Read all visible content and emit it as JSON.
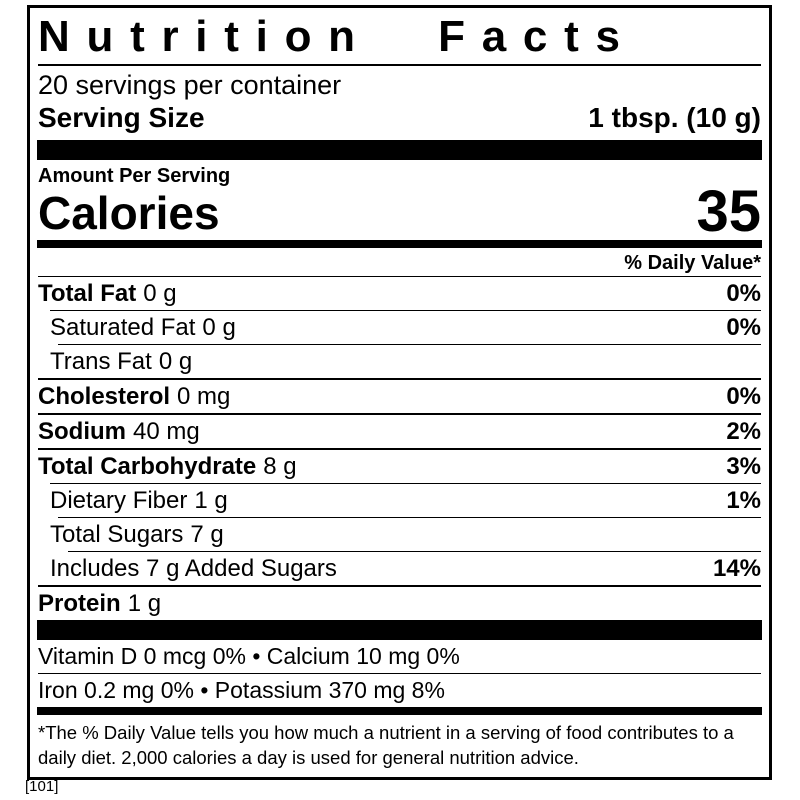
{
  "label": {
    "title": "Nutrition Facts",
    "servings_per_container": "20 servings per container",
    "serving_size": {
      "label": "Serving Size",
      "value": "1 tbsp. (10 g)"
    },
    "amount_per_serving": "Amount Per Serving",
    "calories": {
      "label": "Calories",
      "value": "35"
    },
    "daily_value_header": "% Daily Value*",
    "rows": [
      {
        "name": "Total Fat",
        "amount": "0 g",
        "dv": "0%"
      },
      {
        "name": "Saturated Fat",
        "amount": "0 g",
        "dv": "0%"
      },
      {
        "name": "Trans Fat",
        "amount": "0 g",
        "dv": ""
      },
      {
        "name": "Cholesterol",
        "amount": "0 mg",
        "dv": "0%"
      },
      {
        "name": "Sodium",
        "amount": "40 mg",
        "dv": "2%"
      },
      {
        "name": "Total Carbohydrate",
        "amount": "8 g",
        "dv": "3%"
      },
      {
        "name": "Dietary Fiber",
        "amount": "1 g",
        "dv": "1%"
      },
      {
        "name": "Total Sugars",
        "amount": "7 g",
        "dv": ""
      },
      {
        "name": "Includes 7 g Added Sugars",
        "amount": "",
        "dv": "14%"
      },
      {
        "name": "Protein",
        "amount": "1 g",
        "dv": ""
      }
    ],
    "micronutrient_lines": [
      "Vitamin D 0 mcg 0% • Calcium 10 mg 0%",
      "Iron 0.2 mg 0% • Potassium 370 mg 8%"
    ],
    "footnote": "*The % Daily Value tells you how much a nutrient in a serving of food contributes to a daily diet. 2,000 calories a day is used for general nutrition advice.",
    "colors": {
      "ink": "#000000",
      "background": "#ffffff"
    }
  },
  "caption": "[101]"
}
